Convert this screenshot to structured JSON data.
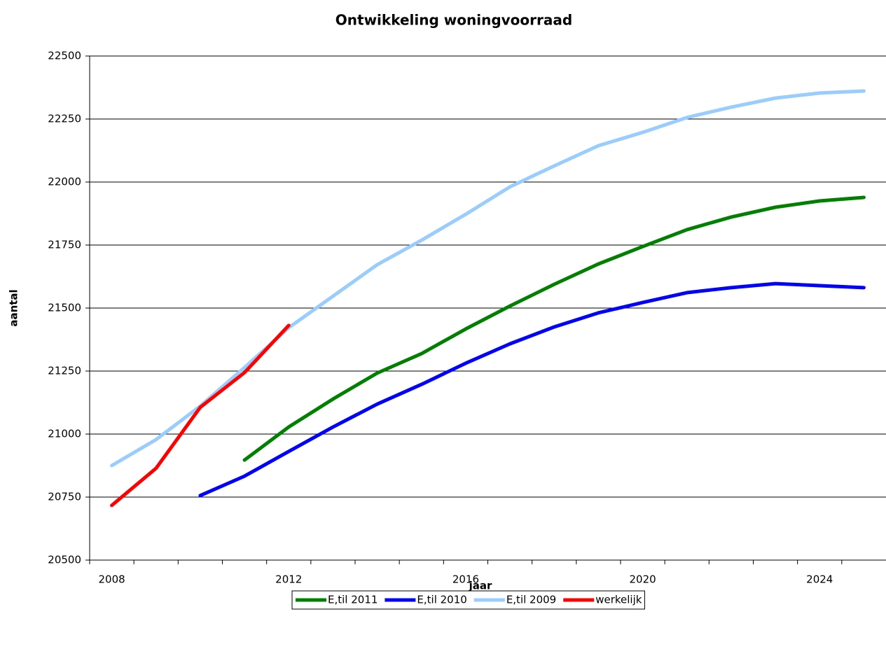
{
  "chart_data": {
    "type": "line",
    "title": "Ontwikkeling woningvoorraad",
    "xlabel": "jaar",
    "ylabel": "aantal",
    "categories": [
      "2008",
      null,
      null,
      null,
      "2012",
      null,
      null,
      null,
      "2016",
      null,
      null,
      null,
      "2020",
      null,
      null,
      null,
      "2024",
      null
    ],
    "series": [
      {
        "name": "E,til 2011",
        "color": "#008000",
        "values": [
          null,
          null,
          null,
          20897,
          21028,
          21139,
          21242,
          21319,
          21417,
          21508,
          21594,
          21675,
          21744,
          21811,
          21861,
          21900,
          21925,
          21939
        ]
      },
      {
        "name": "E,til 2010",
        "color": "#0000ff",
        "values": [
          null,
          null,
          20756,
          20833,
          20931,
          21028,
          21119,
          21197,
          21281,
          21358,
          21425,
          21481,
          21522,
          21561,
          21581,
          21597,
          21589,
          21581
        ]
      },
      {
        "name": "E,til 2009",
        "color": "#99ccff",
        "values": [
          20875,
          20978,
          21111,
          21264,
          21422,
          21547,
          21672,
          21769,
          21872,
          21981,
          22064,
          22144,
          22197,
          22256,
          22297,
          22333,
          22353,
          22361
        ]
      },
      {
        "name": "werkelijk",
        "color": "#ff0000",
        "values": [
          20717,
          20864,
          21106,
          21244,
          21431,
          null,
          null,
          null,
          null,
          null,
          null,
          null,
          null,
          null,
          null,
          null,
          null,
          null
        ]
      }
    ],
    "ylim": [
      20500,
      22500
    ],
    "yticks": [
      20500,
      20750,
      21000,
      21250,
      21500,
      21750,
      22000,
      22250,
      22500
    ],
    "grid": true,
    "legend": "bottom"
  }
}
